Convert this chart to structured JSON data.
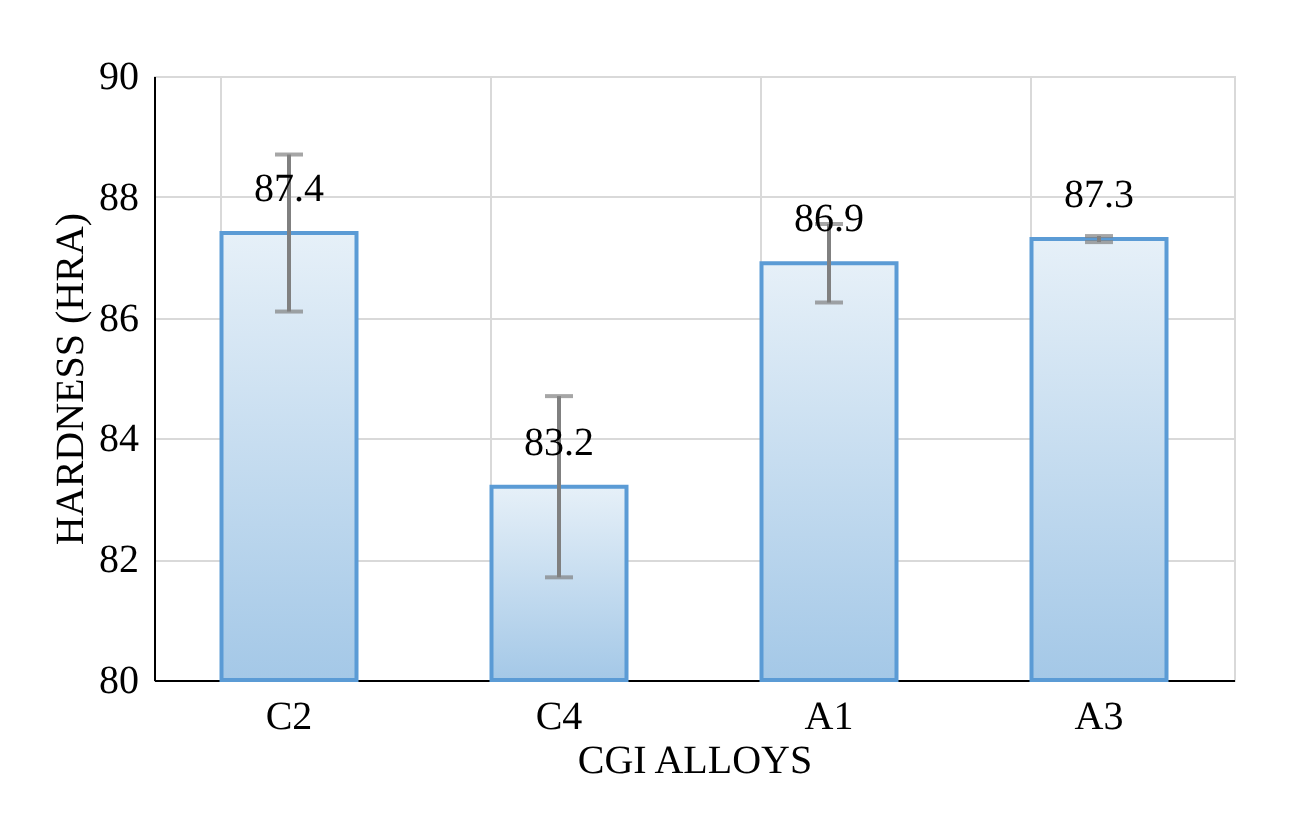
{
  "chart_data": {
    "type": "bar",
    "xlabel": "CGI ALLOYS",
    "ylabel": "HARDNESS (HRA)",
    "categories": [
      "C2",
      "C4",
      "A1",
      "A3"
    ],
    "values": [
      87.4,
      83.2,
      86.9,
      87.3
    ],
    "errors": [
      1.3,
      1.5,
      0.65,
      0.05
    ],
    "color": "#5b9bd5",
    "ylim": [
      80,
      90
    ],
    "yticks": [
      80,
      82,
      84,
      86,
      88,
      90
    ],
    "grid": true,
    "data_labels": true
  }
}
